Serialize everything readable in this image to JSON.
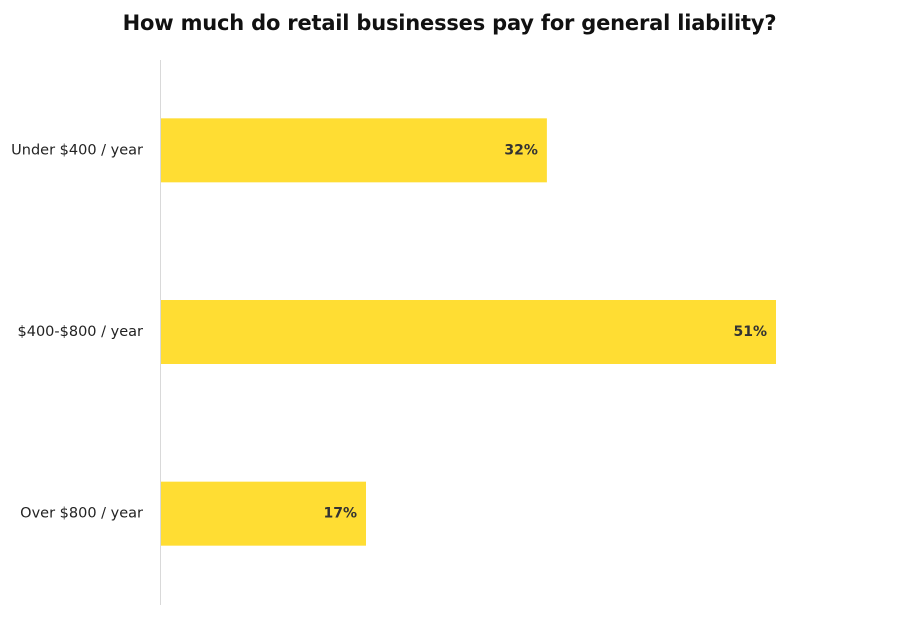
{
  "chart_data": {
    "type": "bar",
    "orientation": "horizontal",
    "title": "How much do retail businesses pay for general liability?",
    "categories": [
      "Under $400 / year",
      "$400-$800 / year",
      "Over $800 / year"
    ],
    "values": [
      32,
      51,
      17
    ],
    "value_labels": [
      "32%",
      "51%",
      "17%"
    ],
    "unit": "%",
    "xlabel": "",
    "ylabel": "",
    "xlim": [
      0,
      64
    ],
    "grid": false,
    "bar_color": "#FFDD33",
    "axis_color": "#D9D9D9"
  }
}
